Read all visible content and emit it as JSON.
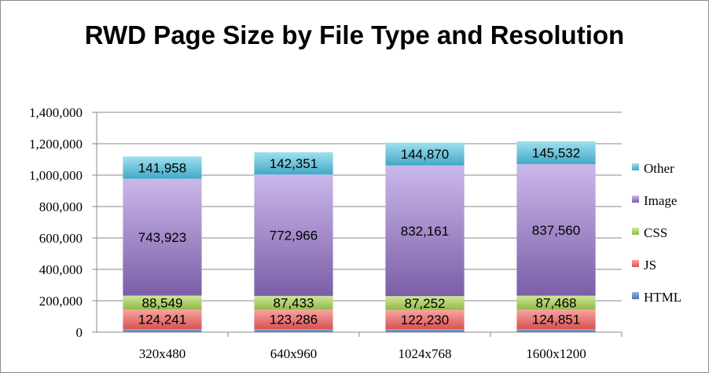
{
  "chart_data": {
    "type": "bar",
    "stacked": true,
    "title": "RWD Page Size by File Type and Resolution",
    "xlabel": "",
    "ylabel": "",
    "ylim": [
      0,
      1400000
    ],
    "yticks": [
      0,
      200000,
      400000,
      600000,
      800000,
      1000000,
      1200000,
      1400000
    ],
    "ytick_labels": [
      "0",
      "200,000",
      "400,000",
      "600,000",
      "800,000",
      "1,000,000",
      "1,200,000",
      "1,400,000"
    ],
    "grid": true,
    "legend_position": "right",
    "categories": [
      "320x480",
      "640x960",
      "1024x768",
      "1600x1200"
    ],
    "series": [
      {
        "name": "HTML",
        "color": "#4f81bd",
        "values": [
          20000,
          20000,
          20000,
          20000
        ],
        "show_labels": false
      },
      {
        "name": "JS",
        "color": "#e05a57",
        "values": [
          124241,
          123286,
          122230,
          124851
        ],
        "labels": [
          "124,241",
          "123,286",
          "122,230",
          "124,851"
        ],
        "show_labels": true
      },
      {
        "name": "CSS",
        "color": "#9bbb59",
        "values": [
          88549,
          87433,
          87252,
          87468
        ],
        "labels": [
          "88,549",
          "87,433",
          "87,252",
          "87,468"
        ],
        "show_labels": true
      },
      {
        "name": "Image",
        "color": "#8064a2",
        "values": [
          743923,
          772966,
          832161,
          837560
        ],
        "labels": [
          "743,923",
          "772,966",
          "832,161",
          "837,560"
        ],
        "show_labels": true
      },
      {
        "name": "Other",
        "color": "#4bacc6",
        "values": [
          141958,
          142351,
          144870,
          145532
        ],
        "labels": [
          "141,958",
          "142,351",
          "144,870",
          "145,532"
        ],
        "show_labels": true
      }
    ]
  }
}
